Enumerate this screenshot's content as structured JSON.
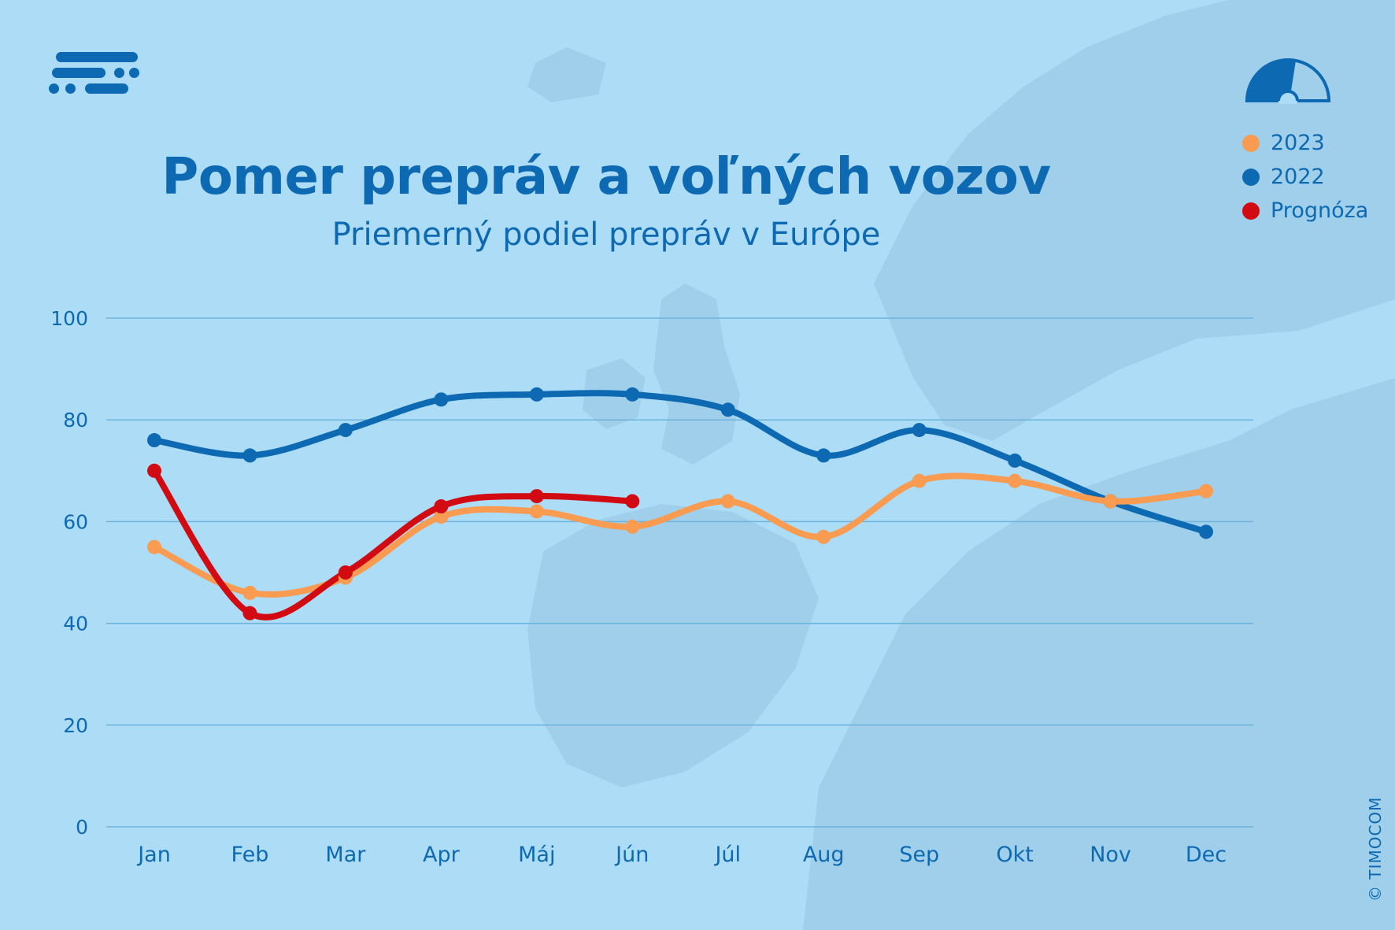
{
  "header": {
    "title": "Pomer prepráv a voľných vozov",
    "subtitle": "Priemerný podiel prepráv v Európe"
  },
  "legend": [
    {
      "label": "2023",
      "color": "#f99b50"
    },
    {
      "label": "2022",
      "color": "#0d6ab2"
    },
    {
      "label": "Prognóza",
      "color": "#d20a12"
    }
  ],
  "copyright": "© TIMOCOM",
  "icons": {
    "logo": "timocom-logo-icon",
    "gauge": "gauge-icon"
  },
  "chart_data": {
    "type": "line",
    "categories": [
      "Jan",
      "Feb",
      "Mar",
      "Apr",
      "Máj",
      "Jún",
      "Júl",
      "Aug",
      "Sep",
      "Okt",
      "Nov",
      "Dec"
    ],
    "ylim": [
      0,
      100
    ],
    "yticks": [
      0,
      20,
      40,
      60,
      80,
      100
    ],
    "grid": true,
    "legend_position": "top-right",
    "series": [
      {
        "name": "2022",
        "color": "#0d6ab2",
        "values": [
          76,
          73,
          78,
          84,
          85,
          85,
          82,
          73,
          78,
          72,
          64,
          58
        ]
      },
      {
        "name": "2023",
        "color": "#f99b50",
        "values": [
          55,
          46,
          49,
          61,
          62,
          59,
          64,
          57,
          68,
          68,
          64,
          66
        ]
      },
      {
        "name": "Prognóza",
        "color": "#d20a12",
        "values": [
          70,
          42,
          50,
          63,
          65,
          64,
          null,
          null,
          null,
          null,
          null,
          null
        ]
      }
    ]
  }
}
